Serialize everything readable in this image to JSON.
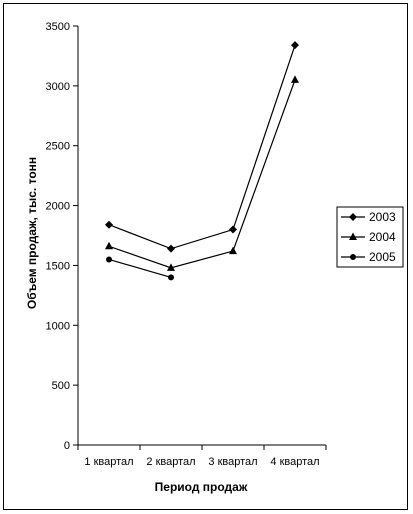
{
  "chart_data": {
    "type": "line",
    "categories": [
      "1 квартал",
      "2 квартал",
      "3 квартал",
      "4 квартал"
    ],
    "series": [
      {
        "name": "2003",
        "marker": "diamond",
        "values": [
          1840,
          1640,
          1800,
          3340
        ]
      },
      {
        "name": "2004",
        "marker": "triangle",
        "values": [
          1660,
          1480,
          1620,
          3050
        ]
      },
      {
        "name": "2005",
        "marker": "circle",
        "values": [
          1550,
          1400,
          null,
          null
        ]
      }
    ],
    "xlabel": "Период продаж",
    "ylabel": "Объем продаж, тыс. тонн",
    "ylim": [
      0,
      3500
    ],
    "yticks": [
      0,
      500,
      1000,
      1500,
      2000,
      2500,
      3000,
      3500
    ],
    "grid": false,
    "legend_position": "right",
    "colors": {
      "line": "#000000",
      "background": "#ffffff"
    }
  }
}
